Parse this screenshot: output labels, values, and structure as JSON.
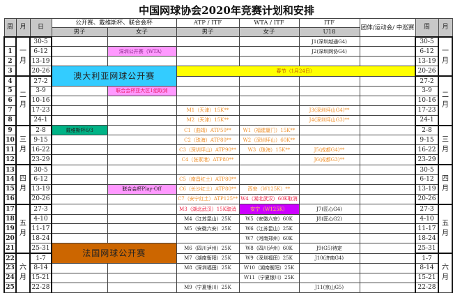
{
  "title": "中国网球协会2020年竞赛计划和安排",
  "colors": {
    "pink": "#ff99ff",
    "cyan": "#33ccff",
    "yellow": "#ffff00",
    "green": "#00b386",
    "brown": "#cc6600",
    "purple": "#cc00ff",
    "orange_text": "#f0902a",
    "red_text": "#ee2244"
  },
  "header": {
    "week": "周",
    "month": "月",
    "date": "日",
    "group_open": "公开赛、戴维斯杯、联合会杯",
    "group_atp": "ATP / ITF",
    "group_wta": "WTA / ITF",
    "group_itf": "ITF",
    "group_team": "团体/运动会/ 中巡赛",
    "men": "男子",
    "women": "女子",
    "atp_men": "男子",
    "wta_women": "女子",
    "u18": "U18",
    "week_r": "周",
    "month_r": "月"
  },
  "months": [
    "一月",
    "二月",
    "三月",
    "四月",
    "五月",
    "六月"
  ],
  "events": {
    "australian_open": "澳大利亚网球公开赛",
    "spring_festival": "春节（1月24日）",
    "french_open": "法国网球公开赛"
  },
  "rows": [
    {
      "week": "",
      "date": "30-5",
      "itf": "J1(深圳越通G4)"
    },
    {
      "week": "1",
      "date": "6-12",
      "women": "深圳公开赛（WTA）",
      "itf": "J2(深圳网协G4)"
    },
    {
      "week": "2",
      "date": "13-19"
    },
    {
      "week": "3",
      "date": "20-26"
    },
    {
      "week": "4",
      "date": "27-2"
    },
    {
      "week": "5",
      "date": "3-9",
      "women": "联合会杯亚大区1组取消"
    },
    {
      "week": "6",
      "date": "10-16"
    },
    {
      "week": "7",
      "date": "17-23",
      "atp": "M1（天津）15K**",
      "itf": "J3(深圳坪山G4)**"
    },
    {
      "week": "8",
      "date": "24-1",
      "atp": "M2（天津）15K**",
      "itf": "J4(深圳坪山G3)**"
    },
    {
      "week": "9",
      "date": "2-8",
      "men": "戴维斯杯6/3",
      "atp": "C1（曲靖）ATP50**",
      "wta": "W1（福建厦门）15K**"
    },
    {
      "week": "10",
      "date": "9-15",
      "atp": "C2（珠海）ATP80**",
      "wta": "W2（深圳坪山）60K**"
    },
    {
      "week": "11",
      "date": "16-22",
      "atp": "C3（深圳坪山）ATP90**",
      "wta": "W3（珠海）15K**",
      "itf": "J5(成都G4)**"
    },
    {
      "week": "12",
      "date": "23-29",
      "atp": "C4（张家港）ATP80**",
      "itf": "J6(成都G3)**"
    },
    {
      "week": "13",
      "date": "30-5"
    },
    {
      "week": "14",
      "date": "6-12",
      "atp": "C5（南昌红土）ATP80**"
    },
    {
      "week": "15",
      "date": "13-19",
      "women": "联合会杯Play-Off",
      "atp": "C6（长沙红土）ATP80**",
      "wta": "西安（W125K）**"
    },
    {
      "week": "16",
      "date": "20-26",
      "atp": "C7（安宁红土）ATP125**",
      "wta": "W4（湖北武汉）60K取消"
    },
    {
      "week": "17",
      "date": "27-3",
      "atp": "M3（湖北武汉）15K取消",
      "wta": "安宁（W125K）",
      "itf": "J7(匠心G4)"
    },
    {
      "week": "18",
      "date": "4-10",
      "atp": "M4（江苏昆山）25K",
      "wta": "W5（安徽六安）60K",
      "itf": "J8(匠心G2)"
    },
    {
      "week": "19",
      "date": "11-17",
      "atp": "M5（安徽六安）25K",
      "wta": "W6（江苏昆山）25K"
    },
    {
      "week": "20",
      "date": "18-24",
      "wta": "W7（河南郑州）60K"
    },
    {
      "week": "21",
      "date": "25-31",
      "atp": "M6（四川泸州）25K",
      "wta": "W8（四川泸州）60K",
      "itf": "J9(G5)待定"
    },
    {
      "week": "22",
      "date": "1-7",
      "atp": "M7（湖南衡阳）25K",
      "wta": "W9（深圳福田）25K",
      "itf": "J10(济南G4)"
    },
    {
      "week": "23",
      "date": "8-14",
      "atp": "M8（深圳福田）25K",
      "wta": "W10（湖南衡阳）25K"
    },
    {
      "week": "24",
      "date": "15-21",
      "wta": "W11（宁夏银川）25K"
    },
    {
      "week": "25",
      "date": "22-28",
      "atp": "M9（宁夏银川）25K",
      "itf": "J11(京山G5)"
    }
  ]
}
